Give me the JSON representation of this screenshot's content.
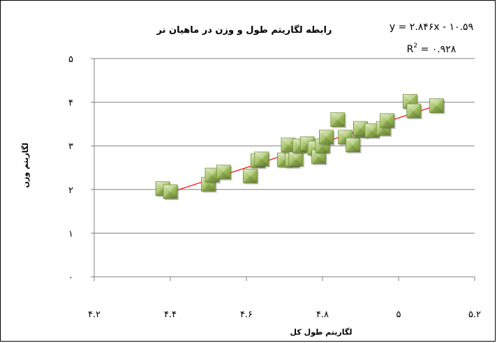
{
  "chart_data": {
    "type": "scatter",
    "title": "رابطه لگاریتم طول و وزن در ماهیان نر",
    "xlabel": "لگاریتم طول کل",
    "ylabel": "لگاریتم وزن",
    "xlim": [
      4.2,
      5.2
    ],
    "ylim": [
      0,
      5
    ],
    "x_ticks": [
      4.2,
      4.4,
      4.6,
      4.8,
      5.0,
      5.2
    ],
    "y_ticks": [
      0,
      1,
      2,
      3,
      4,
      5
    ],
    "x_tick_labels": [
      "۴.۲",
      "۴.۴",
      "۴.۶",
      "۴.۸",
      "۵",
      "۵.۲"
    ],
    "y_tick_labels": [
      "۰",
      "۱",
      "۲",
      "۳",
      "۴",
      "۵"
    ],
    "grid": "horizontal",
    "marker_color": "#9BBB59",
    "trendline_color": "#FF0000",
    "trendline": {
      "slope": 2.846,
      "intercept": -10.59,
      "equation_label": "y = ۲.۸۴۶x - ۱۰.۵۹",
      "r2_prefix": "R",
      "r2_value_label": " = ۰.۹۲۸"
    },
    "x": [
      4.38,
      4.4,
      4.5,
      4.51,
      4.54,
      4.61,
      4.63,
      4.64,
      4.7,
      4.71,
      4.72,
      4.73,
      4.74,
      4.76,
      4.78,
      4.79,
      4.8,
      4.81,
      4.84,
      4.86,
      4.88,
      4.9,
      4.9,
      4.93,
      4.96,
      4.97,
      5.03,
      5.04,
      5.1
    ],
    "y": [
      2.02,
      1.95,
      2.12,
      2.33,
      2.4,
      2.31,
      2.66,
      2.7,
      2.68,
      3.02,
      2.67,
      2.7,
      3.0,
      3.05,
      2.95,
      2.75,
      3.0,
      3.2,
      3.6,
      3.2,
      3.02,
      3.35,
      3.4,
      3.35,
      3.4,
      3.58,
      4.02,
      3.8,
      3.92
    ]
  }
}
